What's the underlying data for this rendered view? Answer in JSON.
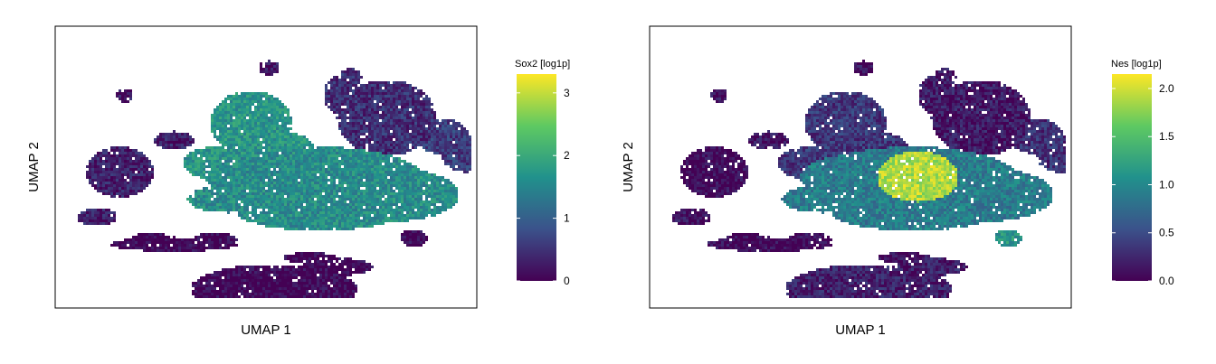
{
  "chart_data": [
    {
      "type": "heatmap",
      "xlabel": "UMAP 1",
      "ylabel": "UMAP 2",
      "gene": "Sox2",
      "legend": {
        "title": "Sox2 [log1p]",
        "range": [
          0,
          3.3
        ],
        "ticks": [
          0,
          1,
          2,
          3
        ],
        "tick_labels": [
          "0",
          "1",
          "2",
          "3"
        ],
        "placement": "right"
      },
      "regions": [
        {
          "name": "central-body",
          "value": 1.6
        },
        {
          "name": "upper-left-arm",
          "value": 1.7
        },
        {
          "name": "upper-right-cluster",
          "value": 0.45
        },
        {
          "name": "right-wing",
          "value": 0.6
        },
        {
          "name": "left-island",
          "value": 0.3
        },
        {
          "name": "bottom-cluster",
          "value": 0.02
        },
        {
          "name": "lower-strip",
          "value": 0.02
        },
        {
          "name": "right-small-island",
          "value": 0.05
        },
        {
          "name": "left-small-blob",
          "value": 0.3
        },
        {
          "name": "upper-small-lobe",
          "value": 0.2
        }
      ]
    },
    {
      "type": "heatmap",
      "xlabel": "UMAP 1",
      "ylabel": "UMAP 2",
      "gene": "Nes",
      "legend": {
        "title": "Nes [log1p]",
        "range": [
          0,
          2.15
        ],
        "ticks": [
          0,
          0.5,
          1,
          1.5,
          2
        ],
        "tick_labels": [
          "0.0",
          "0.5",
          "1.0",
          "1.5",
          "2.0"
        ],
        "placement": "right"
      },
      "regions": [
        {
          "name": "central-body",
          "value": 0.9
        },
        {
          "name": "central-hotspot",
          "value": 1.9
        },
        {
          "name": "upper-left-arm",
          "value": 0.35
        },
        {
          "name": "upper-right-cluster",
          "value": 0.15
        },
        {
          "name": "right-wing",
          "value": 0.3
        },
        {
          "name": "left-island",
          "value": 0.05
        },
        {
          "name": "bottom-cluster",
          "value": 0.2
        },
        {
          "name": "lower-strip",
          "value": 0.05
        },
        {
          "name": "right-small-island",
          "value": 1.1
        },
        {
          "name": "left-small-blob",
          "value": 0.1
        },
        {
          "name": "upper-small-lobe",
          "value": 0.1
        }
      ]
    }
  ],
  "colors": {
    "viridis": [
      "#440154",
      "#3b528b",
      "#21918c",
      "#5ec962",
      "#fde725"
    ],
    "frame": "#000000",
    "background": "#ffffff"
  }
}
